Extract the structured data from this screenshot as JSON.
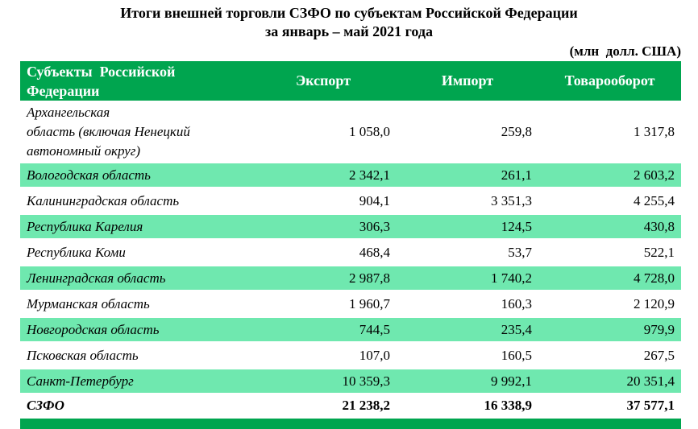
{
  "page": {
    "title_line1": "Итоги внешней торговли СЗФО по субъектам Российской Федерации",
    "title_line2": "за январь – май 2021 года",
    "units_note": "(млн  долл. США)"
  },
  "colors": {
    "header_green": "#00a54f",
    "row_mint": "#6fe8af",
    "header_text": "#ffffff",
    "body_text": "#000000"
  },
  "table": {
    "columns": [
      "Субъекты  Российской\nФедерации",
      "Экспорт",
      "Импорт",
      "Товарооборот"
    ],
    "rows": [
      {
        "name": "Архангельская\nобласть (включая Ненецкий\nавтономный округ)",
        "export": "1 058,0",
        "import": "259,8",
        "turnover": "1 317,8"
      },
      {
        "name": "Вологодская область",
        "export": "2 342,1",
        "import": "261,1",
        "turnover": "2 603,2"
      },
      {
        "name": "Калининградская область",
        "export": "904,1",
        "import": "3 351,3",
        "turnover": "4 255,4"
      },
      {
        "name": "Республика Карелия",
        "export": "306,3",
        "import": "124,5",
        "turnover": "430,8"
      },
      {
        "name": "Республика Коми",
        "export": "468,4",
        "import": "53,7",
        "turnover": "522,1"
      },
      {
        "name": "Ленинградская область",
        "export": "2 987,8",
        "import": "1 740,2",
        "turnover": "4 728,0"
      },
      {
        "name": "Мурманская область",
        "export": "1 960,7",
        "import": "160,3",
        "turnover": "2 120,9"
      },
      {
        "name": "Новгородская область",
        "export": "744,5",
        "import": "235,4",
        "turnover": "979,9"
      },
      {
        "name": "Псковская область",
        "export": "107,0",
        "import": "160,5",
        "turnover": "267,5"
      },
      {
        "name": "Санкт-Петербург",
        "export": "10 359,3",
        "import": "9 992,1",
        "turnover": "20 351,4"
      },
      {
        "name": "СЗФО",
        "export": "21 238,2",
        "import": "16 338,9",
        "turnover": "37 577,1"
      }
    ]
  }
}
